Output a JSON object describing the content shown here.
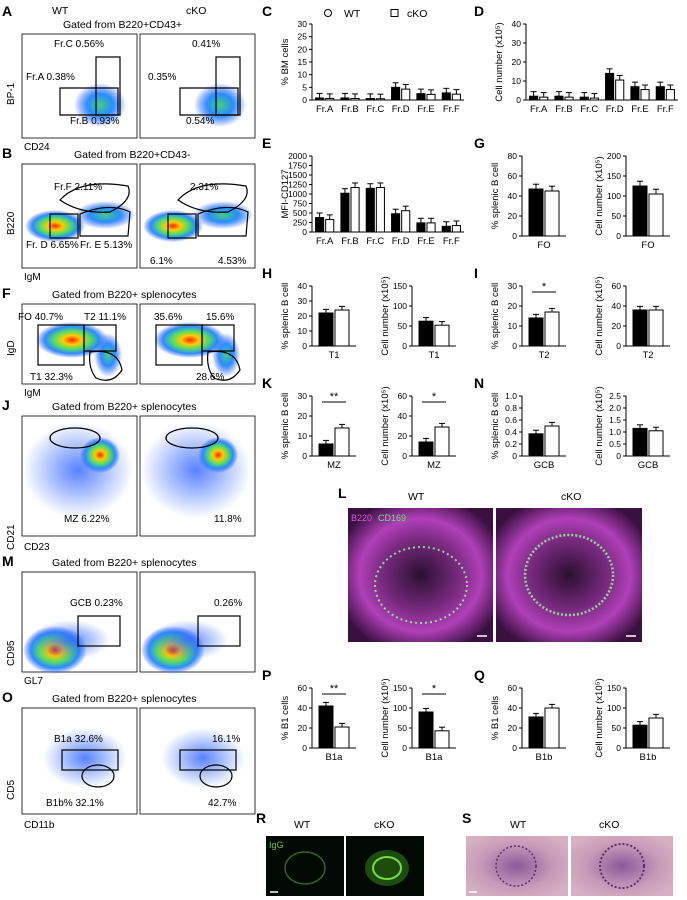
{
  "panels": {
    "A": {
      "letter": "A",
      "wt": "WT",
      "cko": "cKO",
      "gate": "Gated from B220+CD43+",
      "ylabel": "BP-1",
      "xlabel": "CD24",
      "wt_c": "Fr.C 0.56%",
      "wt_a": "Fr.A 0.38%",
      "wt_b": "Fr.B 0.93%",
      "ko_c": "0.41%",
      "ko_a": "0.35%",
      "ko_b": "0.54%"
    },
    "B": {
      "letter": "B",
      "gate": "Gated from B220+CD43-",
      "ylabel": "B220",
      "xlabel": "IgM",
      "wt_f": "Fr.F 2.11%",
      "wt_d": "Fr. D 6.65%",
      "wt_e": "Fr. E 5.13%",
      "ko_f": "2.31%",
      "ko_d": "6.1%",
      "ko_e": "4.53%"
    },
    "F": {
      "letter": "F",
      "gate": "Gated from B220+ splenocytes",
      "ylabel": "IgD",
      "xlabel": "IgM",
      "wt_fo": "FO 40.7%",
      "wt_t2": "T2 11.1%",
      "wt_t1": "T1 32.3%",
      "ko_fo": "35.6%",
      "ko_t2": "15.6%",
      "ko_t1": "28.6%"
    },
    "J": {
      "letter": "J",
      "gate": "Gated from B220+ splenocytes",
      "ylabel": "CD21",
      "xlabel": "CD23",
      "wt_mz": "MZ 6.22%",
      "ko_mz": "11.8%"
    },
    "M": {
      "letter": "M",
      "gate": "Gated from B220+ splenocytes",
      "ylabel": "CD95",
      "xlabel": "GL7",
      "wt_gcb": "GCB 0.23%",
      "ko_gcb": "0.26%"
    },
    "O": {
      "letter": "O",
      "gate": "Gated from B220+ splenocytes",
      "ylabel": "CD5",
      "xlabel": "CD11b",
      "wt_b1a": "B1a 32.6%",
      "wt_b1b": "B1b% 32.1%",
      "ko_b1a": "16.1%",
      "ko_b1b": "42.7%"
    },
    "L": {
      "letter": "L",
      "wt": "WT",
      "cko": "cKO",
      "stain1": "B220",
      "stain2": "CD169"
    },
    "R": {
      "letter": "R",
      "wt": "WT",
      "cko": "cKO",
      "stain": "IgG"
    },
    "S": {
      "letter": "S",
      "wt": "WT",
      "cko": "cKO"
    },
    "C": {
      "letter": "C"
    },
    "D": {
      "letter": "D"
    },
    "E": {
      "letter": "E"
    },
    "G": {
      "letter": "G"
    },
    "H": {
      "letter": "H"
    },
    "I": {
      "letter": "I"
    },
    "K": {
      "letter": "K"
    },
    "N": {
      "letter": "N"
    },
    "P": {
      "letter": "P"
    },
    "Q": {
      "letter": "Q"
    }
  },
  "legend": {
    "wt": "WT",
    "cko": "cKO"
  },
  "colors": {
    "wt_bar": "#000000",
    "cko_bar": "#ffffff",
    "stain_b220": "#cc33cc",
    "stain_cd169": "#55dd55",
    "igg": "#66cc33",
    "he_tissue": "#c48fb0"
  },
  "chart_data": [
    {
      "id": "C",
      "type": "bar",
      "categories": [
        "Fr.A",
        "Fr.B",
        "Fr.C",
        "Fr.D",
        "Fr.E",
        "Fr.F"
      ],
      "ylabel": "% BM cells",
      "ylim": [
        0,
        30
      ],
      "yticks": [
        0,
        5,
        10,
        15,
        20,
        25,
        30
      ],
      "series": [
        {
          "name": "WT",
          "values": [
            0.8,
            0.8,
            0.6,
            5.0,
            2.5,
            2.8
          ]
        },
        {
          "name": "cKO",
          "values": [
            0.6,
            0.6,
            0.5,
            4.3,
            2.2,
            2.3
          ]
        }
      ]
    },
    {
      "id": "D",
      "type": "bar",
      "categories": [
        "Fr.A",
        "Fr.B",
        "Fr.C",
        "Fr.D",
        "Fr.E",
        "Fr.F"
      ],
      "ylabel": "Cell number (x10⁵)",
      "ylim": [
        0,
        40
      ],
      "yticks": [
        0,
        10,
        20,
        30,
        40
      ],
      "series": [
        {
          "name": "WT",
          "values": [
            2,
            2,
            1.5,
            14,
            7,
            7
          ]
        },
        {
          "name": "cKO",
          "values": [
            1.5,
            1.5,
            1,
            10.5,
            5.5,
            5.5
          ]
        }
      ]
    },
    {
      "id": "E",
      "type": "bar",
      "categories": [
        "Fr.A",
        "Fr.B",
        "Fr.C",
        "Fr.D",
        "Fr.E",
        "Fr.F"
      ],
      "ylabel": "MFI-CD127",
      "ylim": [
        0,
        2000
      ],
      "yticks": [
        0,
        250,
        500,
        750,
        1000,
        1250,
        1500,
        1750,
        2000
      ],
      "series": [
        {
          "name": "WT",
          "values": [
            380,
            1020,
            1150,
            480,
            240,
            150
          ]
        },
        {
          "name": "cKO",
          "values": [
            330,
            1170,
            1170,
            560,
            240,
            170
          ]
        }
      ]
    },
    {
      "id": "G1",
      "type": "bar",
      "categories": [
        "FO"
      ],
      "ylabel": "% splenic B cell",
      "ylim": [
        0,
        80
      ],
      "yticks": [
        0,
        20,
        40,
        60,
        80
      ],
      "series": [
        {
          "name": "WT",
          "values": [
            47
          ]
        },
        {
          "name": "cKO",
          "values": [
            45
          ]
        }
      ]
    },
    {
      "id": "G2",
      "type": "bar",
      "categories": [
        "FO"
      ],
      "ylabel": "Cell number (x10⁵)",
      "ylim": [
        0,
        200
      ],
      "yticks": [
        0,
        50,
        100,
        150,
        200
      ],
      "series": [
        {
          "name": "WT",
          "values": [
            125
          ]
        },
        {
          "name": "cKO",
          "values": [
            105
          ]
        }
      ]
    },
    {
      "id": "H1",
      "type": "bar",
      "categories": [
        "T1"
      ],
      "ylabel": "% splenic B cell",
      "ylim": [
        0,
        40
      ],
      "yticks": [
        0,
        10,
        20,
        30,
        40
      ],
      "series": [
        {
          "name": "WT",
          "values": [
            22
          ]
        },
        {
          "name": "cKO",
          "values": [
            24
          ]
        }
      ]
    },
    {
      "id": "H2",
      "type": "bar",
      "categories": [
        "T1"
      ],
      "ylabel": "Cell number (x10⁵)",
      "ylim": [
        0,
        150
      ],
      "yticks": [
        0,
        50,
        100,
        150
      ],
      "series": [
        {
          "name": "WT",
          "values": [
            62
          ]
        },
        {
          "name": "cKO",
          "values": [
            52
          ]
        }
      ]
    },
    {
      "id": "I1",
      "type": "bar",
      "categories": [
        "T2"
      ],
      "ylabel": "% splenic B cell",
      "ylim": [
        0,
        30
      ],
      "yticks": [
        0,
        10,
        20,
        30
      ],
      "sig": "*",
      "series": [
        {
          "name": "WT",
          "values": [
            14
          ]
        },
        {
          "name": "cKO",
          "values": [
            17
          ]
        }
      ]
    },
    {
      "id": "I2",
      "type": "bar",
      "categories": [
        "T2"
      ],
      "ylabel": "Cell number (x10⁵)",
      "ylim": [
        0,
        60
      ],
      "yticks": [
        0,
        20,
        40,
        60
      ],
      "series": [
        {
          "name": "WT",
          "values": [
            36
          ]
        },
        {
          "name": "cKO",
          "values": [
            36
          ]
        }
      ]
    },
    {
      "id": "K1",
      "type": "bar",
      "categories": [
        "MZ"
      ],
      "ylabel": "% splenic B cell",
      "ylim": [
        0,
        30
      ],
      "yticks": [
        0,
        10,
        20,
        30
      ],
      "sig": "**",
      "series": [
        {
          "name": "WT",
          "values": [
            6
          ]
        },
        {
          "name": "cKO",
          "values": [
            14
          ]
        }
      ]
    },
    {
      "id": "K2",
      "type": "bar",
      "categories": [
        "MZ"
      ],
      "ylabel": "Cell number (x10⁵)",
      "ylim": [
        0,
        60
      ],
      "yticks": [
        0,
        20,
        40,
        60
      ],
      "sig": "*",
      "series": [
        {
          "name": "WT",
          "values": [
            14
          ]
        },
        {
          "name": "cKO",
          "values": [
            29
          ]
        }
      ]
    },
    {
      "id": "N1",
      "type": "bar",
      "categories": [
        "GCB"
      ],
      "ylabel": "% splenic B cell",
      "ylim": [
        0,
        1.0
      ],
      "yticks": [
        0,
        0.2,
        0.4,
        0.6,
        0.8,
        1.0
      ],
      "ytick_labels": [
        "0",
        "0.2",
        "0.4",
        "0.6",
        "0.8",
        "1.0"
      ],
      "series": [
        {
          "name": "WT",
          "values": [
            0.37
          ]
        },
        {
          "name": "cKO",
          "values": [
            0.5
          ]
        }
      ]
    },
    {
      "id": "N2",
      "type": "bar",
      "categories": [
        "GCB"
      ],
      "ylabel": "Cell number (x10⁵)",
      "ylim": [
        0,
        2.5
      ],
      "yticks": [
        0,
        0.5,
        1.0,
        1.5,
        2.0,
        2.5
      ],
      "ytick_labels": [
        "0",
        "0.5",
        "1.0",
        "1.5",
        "2.0",
        "2.5"
      ],
      "series": [
        {
          "name": "WT",
          "values": [
            1.15
          ]
        },
        {
          "name": "cKO",
          "values": [
            1.05
          ]
        }
      ]
    },
    {
      "id": "P1",
      "type": "bar",
      "categories": [
        "B1a"
      ],
      "ylabel": "% B1 cells",
      "ylim": [
        0,
        60
      ],
      "yticks": [
        0,
        20,
        40,
        60
      ],
      "sig": "**",
      "series": [
        {
          "name": "WT",
          "values": [
            42
          ]
        },
        {
          "name": "cKO",
          "values": [
            21
          ]
        }
      ]
    },
    {
      "id": "P2",
      "type": "bar",
      "categories": [
        "B1a"
      ],
      "ylabel": "Cell number (x10⁵)",
      "ylim": [
        0,
        150
      ],
      "yticks": [
        0,
        50,
        100,
        150
      ],
      "sig": "*",
      "series": [
        {
          "name": "WT",
          "values": [
            90
          ]
        },
        {
          "name": "cKO",
          "values": [
            43
          ]
        }
      ]
    },
    {
      "id": "Q1",
      "type": "bar",
      "categories": [
        "B1b"
      ],
      "ylabel": "% B1 cells",
      "ylim": [
        0,
        60
      ],
      "yticks": [
        0,
        20,
        40,
        60
      ],
      "series": [
        {
          "name": "WT",
          "values": [
            31
          ]
        },
        {
          "name": "cKO",
          "values": [
            40
          ]
        }
      ]
    },
    {
      "id": "Q2",
      "type": "bar",
      "categories": [
        "B1b"
      ],
      "ylabel": "Cell number (x10⁵)",
      "ylim": [
        0,
        150
      ],
      "yticks": [
        0,
        50,
        100,
        150
      ],
      "series": [
        {
          "name": "WT",
          "values": [
            57
          ]
        },
        {
          "name": "cKO",
          "values": [
            75
          ]
        }
      ]
    }
  ]
}
